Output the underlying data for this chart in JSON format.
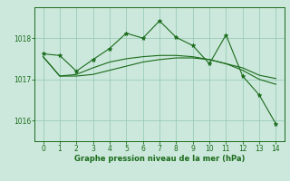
{
  "x": [
    0,
    1,
    2,
    3,
    4,
    5,
    6,
    7,
    8,
    9,
    10,
    11,
    12,
    13,
    14
  ],
  "y_main": [
    1017.62,
    1017.58,
    1017.2,
    1017.48,
    1017.75,
    1018.12,
    1018.0,
    1018.42,
    1018.02,
    1017.82,
    1017.38,
    1018.08,
    1017.08,
    1016.62,
    1015.92
  ],
  "y_smooth1": [
    1017.55,
    1017.08,
    1017.08,
    1017.12,
    1017.22,
    1017.32,
    1017.42,
    1017.48,
    1017.52,
    1017.52,
    1017.48,
    1017.38,
    1017.28,
    1017.1,
    1017.02
  ],
  "y_smooth2": [
    1017.55,
    1017.08,
    1017.12,
    1017.28,
    1017.42,
    1017.5,
    1017.55,
    1017.58,
    1017.58,
    1017.55,
    1017.48,
    1017.38,
    1017.22,
    1017.0,
    1016.88
  ],
  "line_color": "#1a6b1a",
  "bg_color": "#cce8dc",
  "grid_color": "#99ccb8",
  "xlabel": "Graphe pression niveau de la mer (hPa)",
  "yticks": [
    1016,
    1017,
    1018
  ],
  "ylim": [
    1015.5,
    1018.75
  ],
  "xlim": [
    -0.5,
    14.5
  ]
}
